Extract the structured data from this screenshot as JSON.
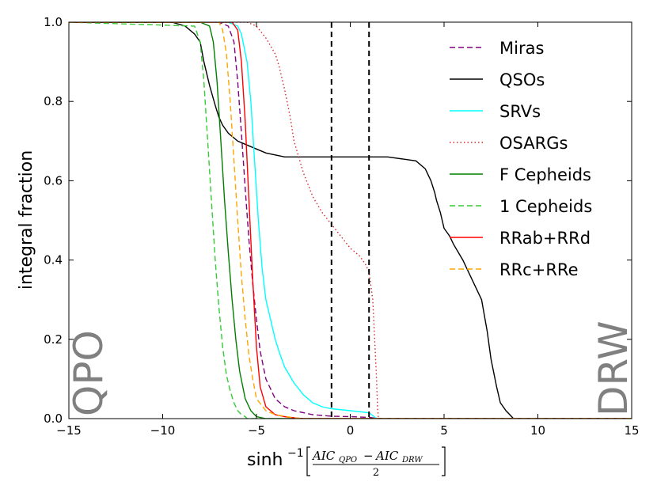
{
  "chart_data": {
    "type": "line",
    "title": "",
    "xlabel": "sinh",
    "xlabel_superscript": "−1",
    "xlabel_numerator_left": "AIC",
    "xlabel_numerator_left_sub": "QPO",
    "xlabel_numerator_op": "−",
    "xlabel_numerator_right": "AIC",
    "xlabel_numerator_right_sub": "DRW",
    "xlabel_denominator": "2",
    "ylabel": "integral fraction",
    "xlim": [
      -15,
      15
    ],
    "ylim": [
      0,
      1
    ],
    "xticks": [
      -15,
      -10,
      -5,
      0,
      5,
      10,
      15
    ],
    "xtick_labels": [
      "−15",
      "−10",
      "−5",
      "0",
      "5",
      "10",
      "15"
    ],
    "yticks": [
      0,
      0.2,
      0.4,
      0.6,
      0.8,
      1.0
    ],
    "ytick_labels": [
      "0.0",
      "0.2",
      "0.4",
      "0.6",
      "0.8",
      "1.0"
    ],
    "grid": false,
    "legend_position": "top-right",
    "corner_labels": {
      "left": "QPO",
      "right": "DRW"
    },
    "vlines": [
      -1,
      1
    ],
    "series": [
      {
        "name": "Miras",
        "color": "#800080",
        "style": "dashed",
        "x": [
          -15,
          -7,
          -6.5,
          -6.2,
          -6,
          -5.8,
          -5.6,
          -5.4,
          -5.2,
          -5,
          -4.8,
          -4.5,
          -4,
          -3.5,
          -3,
          -2,
          -1,
          0,
          1,
          1.5,
          15
        ],
        "y": [
          1,
          1,
          0.99,
          0.95,
          0.85,
          0.72,
          0.58,
          0.45,
          0.34,
          0.25,
          0.17,
          0.1,
          0.05,
          0.03,
          0.02,
          0.01,
          0.006,
          0.005,
          0.003,
          0,
          0
        ]
      },
      {
        "name": "QSOs",
        "color": "#000000",
        "style": "solid",
        "x": [
          -15,
          -9.5,
          -8.8,
          -8.3,
          -8,
          -7.8,
          -7.5,
          -7.2,
          -7,
          -6.8,
          -6.5,
          -6,
          -5.5,
          -5,
          -4.5,
          -4,
          -3.5,
          -3,
          -2,
          0,
          2,
          3.5,
          4,
          4.3,
          4.5,
          4.6,
          4.8,
          5,
          5.3,
          5.5,
          6,
          6.5,
          7,
          7.3,
          7.5,
          7.8,
          8,
          8.3,
          8.5,
          8.7,
          15
        ],
        "y": [
          1,
          1,
          0.99,
          0.97,
          0.95,
          0.9,
          0.84,
          0.79,
          0.76,
          0.74,
          0.72,
          0.7,
          0.69,
          0.68,
          0.67,
          0.665,
          0.66,
          0.66,
          0.66,
          0.66,
          0.66,
          0.65,
          0.63,
          0.6,
          0.57,
          0.55,
          0.52,
          0.48,
          0.46,
          0.44,
          0.4,
          0.35,
          0.3,
          0.22,
          0.15,
          0.08,
          0.04,
          0.02,
          0.01,
          0,
          0
        ]
      },
      {
        "name": "SRVs",
        "color": "#00FFFF",
        "style": "solid",
        "x": [
          -15,
          -6.5,
          -6,
          -5.8,
          -5.5,
          -5.3,
          -5.1,
          -4.9,
          -4.7,
          -4.5,
          -4.2,
          -4,
          -3.8,
          -3.5,
          -3,
          -2.5,
          -2,
          -1.5,
          -1,
          0,
          1,
          1.4,
          15
        ],
        "y": [
          1,
          1,
          0.99,
          0.97,
          0.9,
          0.8,
          0.65,
          0.5,
          0.38,
          0.3,
          0.24,
          0.2,
          0.17,
          0.13,
          0.09,
          0.06,
          0.04,
          0.03,
          0.025,
          0.02,
          0.015,
          0,
          0
        ]
      },
      {
        "name": "OSARGs",
        "color": "#D62728",
        "style": "dotted",
        "x": [
          -15,
          -5.5,
          -5,
          -4.5,
          -4,
          -3.8,
          -3.5,
          -3.2,
          -3,
          -2.5,
          -2,
          -1.5,
          -1,
          -0.5,
          0,
          0.5,
          0.8,
          1,
          1.2,
          1.3,
          1.4,
          1.45,
          1.5,
          15
        ],
        "y": [
          1,
          1,
          0.99,
          0.96,
          0.92,
          0.89,
          0.83,
          0.76,
          0.7,
          0.62,
          0.56,
          0.52,
          0.49,
          0.46,
          0.43,
          0.41,
          0.39,
          0.37,
          0.3,
          0.2,
          0.1,
          0.03,
          0,
          0
        ]
      },
      {
        "name": "F Cepheids",
        "color": "#008000",
        "style": "solid",
        "x": [
          -15,
          -8,
          -7.5,
          -7.3,
          -7.1,
          -6.9,
          -6.7,
          -6.5,
          -6.3,
          -6.1,
          -5.9,
          -5.6,
          -5.3,
          -5,
          -4.5,
          15
        ],
        "y": [
          1,
          1,
          0.99,
          0.95,
          0.85,
          0.7,
          0.55,
          0.42,
          0.3,
          0.2,
          0.12,
          0.05,
          0.02,
          0.005,
          0,
          0
        ]
      },
      {
        "name": "1 Cepheids",
        "color": "#33CC33",
        "style": "dashed",
        "x": [
          -15,
          -8.3,
          -8,
          -7.8,
          -7.6,
          -7.4,
          -7.2,
          -7,
          -6.8,
          -6.6,
          -6.4,
          -6.2,
          -6,
          -5.8,
          -5.6,
          -5.5,
          15
        ],
        "y": [
          1,
          0.99,
          0.95,
          0.85,
          0.7,
          0.55,
          0.4,
          0.28,
          0.18,
          0.11,
          0.07,
          0.04,
          0.02,
          0.01,
          0.005,
          0,
          0
        ]
      },
      {
        "name": "RRab+RRd",
        "color": "#FF0000",
        "style": "solid",
        "x": [
          -15,
          -6.3,
          -6,
          -5.8,
          -5.6,
          -5.4,
          -5.2,
          -5,
          -4.8,
          -4.5,
          -4,
          -3.5,
          -3,
          -2.5,
          15
        ],
        "y": [
          1,
          1,
          0.98,
          0.9,
          0.75,
          0.55,
          0.35,
          0.18,
          0.08,
          0.03,
          0.01,
          0.005,
          0.002,
          0,
          0
        ]
      },
      {
        "name": "RRc+RRe",
        "color": "#FFA500",
        "style": "dashed",
        "x": [
          -15,
          -7,
          -6.8,
          -6.6,
          -6.4,
          -6.2,
          -6,
          -5.8,
          -5.6,
          -5.4,
          -5.2,
          -5,
          -4.5,
          -4,
          -3,
          -2.5,
          15
        ],
        "y": [
          1,
          1,
          0.98,
          0.92,
          0.8,
          0.65,
          0.5,
          0.36,
          0.25,
          0.16,
          0.1,
          0.05,
          0.02,
          0.01,
          0.002,
          0,
          0
        ]
      }
    ]
  }
}
